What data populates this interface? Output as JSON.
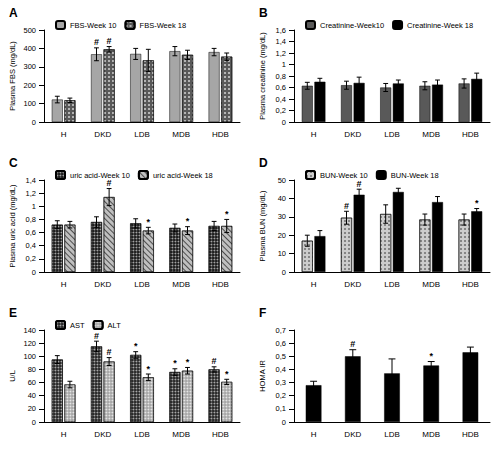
{
  "chart_data": [
    {
      "type": "bar",
      "title": "A",
      "ylabel": "Plasma FBS (mg/dL)",
      "legend": "top",
      "grid": false,
      "categories": [
        "H",
        "DKD",
        "LDB",
        "MDB",
        "HDB"
      ],
      "ylim": [
        0,
        500
      ],
      "yticks": [
        0,
        100,
        200,
        300,
        400,
        500
      ],
      "series": [
        {
          "name": "FBS-Week 10",
          "color": "#a6a6a6",
          "values": [
            122,
            368,
            370,
            385,
            380
          ],
          "errors": [
            18,
            35,
            30,
            25,
            20
          ],
          "significance": [
            null,
            "#",
            null,
            null,
            null
          ]
        },
        {
          "name": "FBS-Week 18",
          "color": "#595959",
          "values": [
            118,
            395,
            335,
            365,
            355
          ],
          "errors": [
            12,
            15,
            60,
            25,
            20
          ],
          "significance": [
            null,
            "#",
            null,
            null,
            null
          ]
        }
      ]
    },
    {
      "type": "bar",
      "title": "B",
      "ylabel": "Plasma creatinine (mg/dL)",
      "legend": "top",
      "grid": false,
      "categories": [
        "H",
        "DKD",
        "LDB",
        "MDB",
        "HDB"
      ],
      "ylim": [
        0,
        1.6
      ],
      "yticks": [
        0,
        {
          "value": 0.2,
          "label": "0,2"
        },
        {
          "value": 0.4,
          "label": "0,4"
        },
        {
          "value": 0.6,
          "label": "0,6"
        },
        {
          "value": 0.8,
          "label": "0,8"
        },
        1,
        {
          "value": 1.2,
          "label": "1,2"
        },
        {
          "value": 1.4,
          "label": "1,4"
        },
        {
          "value": 1.6,
          "label": "1,6"
        }
      ],
      "series": [
        {
          "name": "Creatinine-Week10",
          "color": "#595959",
          "values": [
            0.63,
            0.64,
            0.6,
            0.63,
            0.67
          ],
          "errors": [
            0.06,
            0.07,
            0.07,
            0.07,
            0.08
          ]
        },
        {
          "name": "Creatinine-Week 18",
          "color": "#000000",
          "values": [
            0.7,
            0.68,
            0.67,
            0.65,
            0.75
          ],
          "errors": [
            0.06,
            0.1,
            0.06,
            0.08,
            0.1
          ]
        }
      ]
    },
    {
      "type": "bar",
      "title": "C",
      "ylabel": "Plasma uric acid (mg/dL)",
      "legend": "top",
      "grid": false,
      "categories": [
        "H",
        "DKD",
        "LDB",
        "MDB",
        "HDB"
      ],
      "ylim": [
        0,
        1.4
      ],
      "yticks": [
        0,
        {
          "value": 0.2,
          "label": "0,2"
        },
        {
          "value": 0.4,
          "label": "0,4"
        },
        {
          "value": 0.6,
          "label": "0,6"
        },
        {
          "value": 0.8,
          "label": "0,8"
        },
        1,
        {
          "value": 1.2,
          "label": "1,2"
        },
        {
          "value": 1.4,
          "label": "1,4"
        }
      ],
      "series": [
        {
          "name": "uric acid-Week 10",
          "color": "#1a1a1a",
          "values": [
            0.72,
            0.76,
            0.74,
            0.67,
            0.7
          ],
          "errors": [
            0.06,
            0.08,
            0.07,
            0.06,
            0.07
          ]
        },
        {
          "name": "uric acid-Week 18",
          "color": "#bfbfbf",
          "values": [
            0.72,
            1.14,
            0.63,
            0.63,
            0.7
          ],
          "errors": [
            0.05,
            0.13,
            0.05,
            0.06,
            0.1
          ],
          "significance": [
            null,
            "#",
            "*",
            "*",
            "*"
          ]
        }
      ]
    },
    {
      "type": "bar",
      "title": "D",
      "ylabel": "Plasma BUN (mg/dL)",
      "legend": "top",
      "grid": false,
      "categories": [
        "H",
        "DKD",
        "LDB",
        "MDB",
        "HDB"
      ],
      "ylim": [
        0,
        50
      ],
      "yticks": [
        0,
        10,
        20,
        30,
        40,
        50
      ],
      "series": [
        {
          "name": "BUN-Week 10",
          "color": "#cccccc",
          "values": [
            17,
            29.5,
            31.5,
            28.5,
            28.5
          ],
          "errors": [
            3,
            3.5,
            5,
            3,
            3
          ],
          "significance": [
            null,
            "#",
            null,
            null,
            null
          ]
        },
        {
          "name": "BUN-Week 18",
          "color": "#000000",
          "values": [
            19.5,
            42,
            43.5,
            38,
            33
          ],
          "errors": [
            3,
            3,
            2,
            3,
            1.5
          ],
          "significance": [
            null,
            "#",
            null,
            null,
            "*"
          ]
        }
      ]
    },
    {
      "type": "bar",
      "title": "E",
      "ylabel": "U/L",
      "legend": "top",
      "grid": false,
      "categories": [
        "H",
        "DKD",
        "LDB",
        "MDB",
        "HDB"
      ],
      "ylim": [
        0,
        140
      ],
      "yticks": [
        0,
        20,
        40,
        60,
        80,
        100,
        120,
        140
      ],
      "series": [
        {
          "name": "AST",
          "color": "#262626",
          "values": [
            95,
            115,
            102,
            76,
            80
          ],
          "errors": [
            6,
            8,
            5,
            5,
            4
          ],
          "significance": [
            null,
            "#",
            "*",
            "*",
            "#"
          ]
        },
        {
          "name": "ALT",
          "color": "#a6a6a6",
          "values": [
            57,
            92,
            68,
            78,
            61
          ],
          "errors": [
            5,
            6,
            5,
            5,
            4
          ],
          "significance": [
            null,
            "#",
            "*",
            "*",
            "*"
          ]
        }
      ]
    },
    {
      "type": "bar",
      "title": "F",
      "ylabel": "HOMA IR",
      "grid": false,
      "categories": [
        "H",
        "DKD",
        "LDB",
        "MDB",
        "HDB"
      ],
      "ylim": [
        0,
        0.7
      ],
      "yticks": [
        0,
        {
          "value": 0.1,
          "label": "0,1"
        },
        {
          "value": 0.2,
          "label": "0,2"
        },
        {
          "value": 0.3,
          "label": "0,3"
        },
        {
          "value": 0.4,
          "label": "0,4"
        },
        {
          "value": 0.5,
          "label": "0,5"
        },
        {
          "value": 0.6,
          "label": "0,6"
        },
        {
          "value": 0.7,
          "label": "0,7"
        }
      ],
      "series": [
        {
          "color": "#000000",
          "values": [
            0.28,
            0.5,
            0.37,
            0.43,
            0.53
          ],
          "errors": [
            0.03,
            0.05,
            0.11,
            0.03,
            0.04
          ],
          "significance": [
            null,
            "#",
            null,
            "*",
            null
          ]
        }
      ]
    }
  ]
}
